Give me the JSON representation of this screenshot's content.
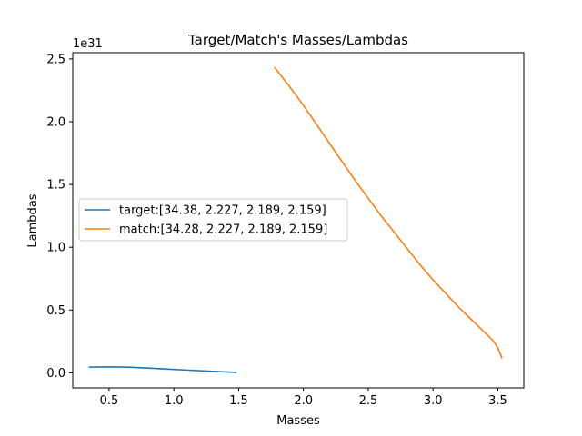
{
  "chart_data": {
    "type": "line",
    "title": "Target/Match's Masses/Lambdas",
    "xlabel": "Masses",
    "ylabel": "Lambdas",
    "y_offset_label": "1e31",
    "xlim": [
      0.22,
      3.7
    ],
    "ylim": [
      -0.12,
      2.55
    ],
    "xticks": [
      0.5,
      1.0,
      1.5,
      2.0,
      2.5,
      3.0,
      3.5
    ],
    "xtick_labels": [
      "0.5",
      "1.0",
      "1.5",
      "2.0",
      "2.5",
      "3.0",
      "3.5"
    ],
    "yticks": [
      0.0,
      0.5,
      1.0,
      1.5,
      2.0,
      2.5
    ],
    "ytick_labels": [
      "0.0",
      "0.5",
      "1.0",
      "1.5",
      "2.0",
      "2.5"
    ],
    "grid": false,
    "legend_position": "center-left",
    "series": [
      {
        "name": "target:[34.38, 2.227, 2.189, 2.159]",
        "color": "#1f77b4",
        "x": [
          0.35,
          0.5,
          0.65,
          0.8,
          0.95,
          1.1,
          1.25,
          1.4,
          1.48
        ],
        "y": [
          0.045,
          0.048,
          0.045,
          0.038,
          0.03,
          0.022,
          0.014,
          0.007,
          0.004
        ]
      },
      {
        "name": "match:[34.28, 2.227, 2.189, 2.159]",
        "color": "#ff7f0e",
        "x": [
          1.78,
          1.9,
          2.0,
          2.1,
          2.2,
          2.3,
          2.4,
          2.5,
          2.6,
          2.7,
          2.8,
          2.9,
          3.0,
          3.1,
          3.2,
          3.3,
          3.4,
          3.46,
          3.5,
          3.53
        ],
        "y": [
          2.43,
          2.27,
          2.13,
          1.98,
          1.83,
          1.68,
          1.53,
          1.39,
          1.25,
          1.12,
          0.99,
          0.86,
          0.74,
          0.63,
          0.52,
          0.42,
          0.32,
          0.26,
          0.2,
          0.12
        ]
      }
    ]
  }
}
